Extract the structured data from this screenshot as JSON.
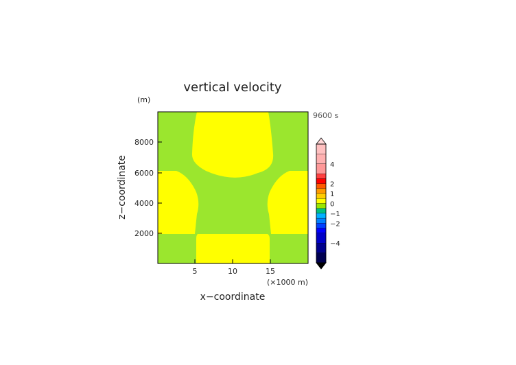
{
  "chart_data": {
    "type": "heatmap",
    "title": "vertical velocity",
    "xlabel": "x−coordinate",
    "ylabel": "z−coordinate",
    "x_unit": "(×1000 m)",
    "y_unit": "(m)",
    "time_label": "9600 s",
    "xlim": [
      0,
      20
    ],
    "ylim": [
      0,
      10000
    ],
    "x_ticks": [
      5,
      10,
      15
    ],
    "y_ticks": [
      2000,
      4000,
      6000,
      8000
    ],
    "x_tick_labels": [
      "5",
      "10",
      "15"
    ],
    "y_tick_labels": [
      "2000",
      "4000",
      "6000",
      "8000"
    ],
    "field": {
      "background_value_range": [
        -0.5,
        0
      ],
      "background_color": "#9be62e",
      "positive_regions": [
        {
          "description": "upper central cell",
          "x_range": [
            5.2,
            14.8
          ],
          "z_range": [
            5700,
            9800
          ],
          "value_range": [
            0,
            0.5
          ]
        },
        {
          "description": "left middle cell",
          "x_range": [
            0,
            5.4
          ],
          "z_range": [
            2000,
            6100
          ],
          "value_range": [
            0,
            0.5
          ]
        },
        {
          "description": "right middle cell",
          "x_range": [
            14.6,
            20
          ],
          "z_range": [
            2000,
            6100
          ],
          "value_range": [
            0,
            0.5
          ]
        },
        {
          "description": "lower central cell",
          "x_range": [
            5.1,
            14.9
          ],
          "z_range": [
            0,
            2000
          ],
          "value_range": [
            0,
            0.5
          ]
        }
      ],
      "positive_color": "#ffff00"
    },
    "colorbar": {
      "labels": [
        "4",
        "2",
        "1",
        "0",
        "−1",
        "−2",
        "−4"
      ],
      "label_values": [
        4,
        2,
        1,
        0,
        -1,
        -2,
        -4
      ],
      "bands": [
        {
          "range": [
            5,
            6
          ],
          "color": "#ffc0c0"
        },
        {
          "range": [
            4,
            5
          ],
          "color": "#ffb0b0"
        },
        {
          "range": [
            3,
            4
          ],
          "color": "#ff9898"
        },
        {
          "range": [
            2.5,
            3
          ],
          "color": "#ff4040"
        },
        {
          "range": [
            2,
            2.5
          ],
          "color": "#ff0000"
        },
        {
          "range": [
            1.5,
            2
          ],
          "color": "#ff5a00"
        },
        {
          "range": [
            1,
            1.5
          ],
          "color": "#ff9a00"
        },
        {
          "range": [
            0.5,
            1
          ],
          "color": "#ffcc00"
        },
        {
          "range": [
            0,
            0.5
          ],
          "color": "#ffff00"
        },
        {
          "range": [
            -0.5,
            0
          ],
          "color": "#99e600"
        },
        {
          "range": [
            -1,
            -0.5
          ],
          "color": "#00c080"
        },
        {
          "range": [
            -1.5,
            -1
          ],
          "color": "#00b0ff"
        },
        {
          "range": [
            -2,
            -1.5
          ],
          "color": "#0080ff"
        },
        {
          "range": [
            -2.5,
            -2
          ],
          "color": "#0040ff"
        },
        {
          "range": [
            -3,
            -2.5
          ],
          "color": "#0000ff"
        },
        {
          "range": [
            -4,
            -3
          ],
          "color": "#0000c8"
        },
        {
          "range": [
            -5,
            -4
          ],
          "color": "#00008c"
        },
        {
          "range": [
            -6,
            -5
          ],
          "color": "#000050"
        }
      ],
      "over_color": "#ffd8d8",
      "under_color": "#000000"
    }
  }
}
